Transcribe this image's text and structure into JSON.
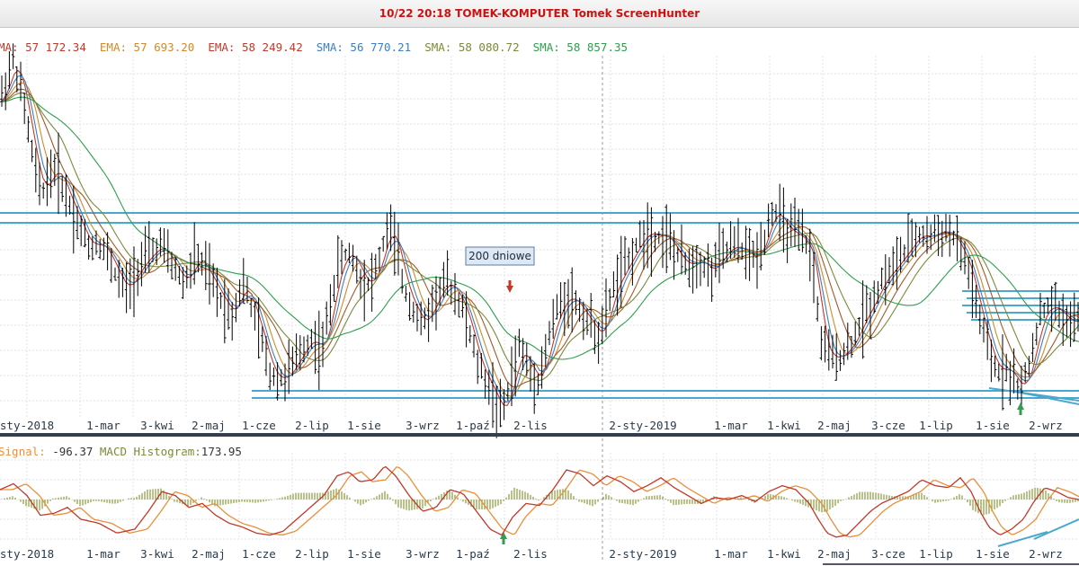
{
  "window": {
    "title": "10/22 20:18 TOMEK-KOMPUTER Tomek ScreenHunter"
  },
  "legend": {
    "ma_items": [
      {
        "label": "MA:",
        "value": "57 172.34",
        "color": "#c0392b"
      },
      {
        "label": "EMA:",
        "value": "57 693.20",
        "color": "#d38a2c"
      },
      {
        "label": "EMA:",
        "value": "58 249.42",
        "color": "#c0392b"
      },
      {
        "label": "SMA:",
        "value": "56 770.21",
        "color": "#3d7fbf"
      },
      {
        "label": "SMA:",
        "value": "58 080.72",
        "color": "#7a8a3a"
      },
      {
        "label": "SMA:",
        "value": "58 857.35",
        "color": "#2e9e4f"
      }
    ],
    "macd": {
      "signal_label": "Signal:",
      "signal_value": "-96.37",
      "hist_label": "MACD Histogram:",
      "hist_value": "173.95"
    }
  },
  "annotation": {
    "text": "200 dniowe"
  },
  "colors": {
    "price_bars": "#000000",
    "grid": "#e3e3e3",
    "horizontal_levels": "#4aa8cf",
    "separator": "#333f4f",
    "macd_line": "#c0392b",
    "signal_line": "#e8903a",
    "histogram": "#8a9a3a",
    "arrow_up": "#2e9e4f",
    "arrow_down": "#c0392b"
  },
  "chart_data": [
    {
      "type": "candlestick-ohlc",
      "x_labels": [
        "sty-2018",
        "1-mar",
        "3-kwi",
        "2-maj",
        "1-cze",
        "2-lip",
        "1-sie",
        "3-wrz",
        "1-paź",
        "2-lis",
        "2-sty-2019",
        "1-mar",
        "1-kwi",
        "2-maj",
        "3-cze",
        "1-lip",
        "1-sie",
        "2-wrz"
      ],
      "ylim": [
        0,
        100
      ],
      "close_path": [
        [
          0,
          88
        ],
        [
          8,
          95
        ],
        [
          15,
          100
        ],
        [
          22,
          93
        ],
        [
          30,
          82
        ],
        [
          38,
          70
        ],
        [
          45,
          62
        ],
        [
          52,
          66
        ],
        [
          62,
          70
        ],
        [
          70,
          64
        ],
        [
          80,
          58
        ],
        [
          90,
          52
        ],
        [
          100,
          47
        ],
        [
          108,
          49
        ],
        [
          118,
          46
        ],
        [
          128,
          40
        ],
        [
          140,
          35
        ],
        [
          152,
          41
        ],
        [
          165,
          45
        ],
        [
          178,
          48
        ],
        [
          192,
          42
        ],
        [
          205,
          37
        ],
        [
          218,
          45
        ],
        [
          230,
          40
        ],
        [
          245,
          33
        ],
        [
          258,
          28
        ],
        [
          270,
          38
        ],
        [
          280,
          30
        ],
        [
          290,
          22
        ],
        [
          300,
          12
        ],
        [
          315,
          10
        ],
        [
          330,
          16
        ],
        [
          345,
          22
        ],
        [
          358,
          18
        ],
        [
          368,
          33
        ],
        [
          378,
          44
        ],
        [
          390,
          46
        ],
        [
          402,
          38
        ],
        [
          412,
          37
        ],
        [
          422,
          44
        ],
        [
          432,
          54
        ],
        [
          440,
          47
        ],
        [
          450,
          35
        ],
        [
          460,
          30
        ],
        [
          470,
          25
        ],
        [
          480,
          31
        ],
        [
          495,
          38
        ],
        [
          508,
          34
        ],
        [
          520,
          26
        ],
        [
          530,
          15
        ],
        [
          540,
          10
        ],
        [
          550,
          5
        ],
        [
          558,
          0
        ],
        [
          566,
          8
        ],
        [
          578,
          20
        ],
        [
          590,
          12
        ],
        [
          600,
          10
        ],
        [
          610,
          22
        ],
        [
          620,
          30
        ],
        [
          632,
          34
        ],
        [
          645,
          30
        ],
        [
          655,
          26
        ],
        [
          668,
          22
        ],
        [
          680,
          35
        ],
        [
          695,
          42
        ],
        [
          708,
          48
        ],
        [
          720,
          52
        ],
        [
          730,
          50
        ],
        [
          740,
          51
        ],
        [
          752,
          45
        ],
        [
          765,
          42
        ],
        [
          778,
          44
        ],
        [
          790,
          40
        ],
        [
          802,
          45
        ],
        [
          815,
          48
        ],
        [
          828,
          46
        ],
        [
          840,
          44
        ],
        [
          850,
          50
        ],
        [
          858,
          58
        ],
        [
          866,
          56
        ],
        [
          875,
          52
        ],
        [
          885,
          51
        ],
        [
          898,
          48
        ],
        [
          905,
          40
        ],
        [
          912,
          22
        ],
        [
          920,
          17
        ],
        [
          928,
          16
        ],
        [
          940,
          18
        ],
        [
          950,
          22
        ],
        [
          960,
          28
        ],
        [
          970,
          32
        ],
        [
          980,
          38
        ],
        [
          992,
          41
        ],
        [
          1000,
          44
        ],
        [
          1010,
          47
        ],
        [
          1020,
          51
        ],
        [
          1032,
          50
        ],
        [
          1045,
          52
        ],
        [
          1058,
          51
        ],
        [
          1068,
          46
        ],
        [
          1078,
          40
        ],
        [
          1088,
          28
        ],
        [
          1098,
          19
        ],
        [
          1108,
          12
        ],
        [
          1118,
          14
        ],
        [
          1128,
          10
        ],
        [
          1136,
          7
        ],
        [
          1145,
          15
        ],
        [
          1155,
          27
        ],
        [
          1165,
          31
        ],
        [
          1175,
          30
        ],
        [
          1185,
          27
        ],
        [
          1195,
          26
        ],
        [
          1200,
          27
        ]
      ],
      "moving_averages": [
        {
          "name": "MA",
          "color": "#c0392b",
          "offset": 0,
          "lag": 4
        },
        {
          "name": "EMA",
          "color": "#d38a2c",
          "offset": 0,
          "lag": 9
        },
        {
          "name": "EMA",
          "color": "#a05a2a",
          "offset": 0,
          "lag": 14
        },
        {
          "name": "SMA",
          "color": "#3d7fbf",
          "offset": 0,
          "lag": 6
        },
        {
          "name": "SMA",
          "color": "#7a8a3a",
          "offset": 0,
          "lag": 20
        },
        {
          "name": "SMA",
          "color": "#2e9e4f",
          "offset": 0,
          "lag": 38
        }
      ]
    },
    {
      "type": "macd",
      "x_labels": [
        "sty-2018",
        "1-mar",
        "3-kwi",
        "2-maj",
        "1-cze",
        "2-lip",
        "1-sie",
        "3-wrz",
        "1-paź",
        "2-lis",
        "2-sty-2019",
        "1-mar",
        "1-kwi",
        "2-maj",
        "3-cze",
        "1-lip",
        "1-sie",
        "2-wrz"
      ],
      "ylim": [
        -1,
        1
      ],
      "macd_path": [
        [
          0,
          0.25
        ],
        [
          15,
          0.4
        ],
        [
          30,
          0.1
        ],
        [
          45,
          -0.4
        ],
        [
          60,
          -0.35
        ],
        [
          75,
          -0.2
        ],
        [
          90,
          -0.5
        ],
        [
          110,
          -0.6
        ],
        [
          130,
          -0.85
        ],
        [
          150,
          -0.75
        ],
        [
          165,
          -0.3
        ],
        [
          180,
          0.2
        ],
        [
          195,
          0.1
        ],
        [
          210,
          -0.2
        ],
        [
          225,
          -0.1
        ],
        [
          240,
          -0.4
        ],
        [
          255,
          -0.6
        ],
        [
          270,
          -0.7
        ],
        [
          285,
          -0.85
        ],
        [
          300,
          -0.9
        ],
        [
          315,
          -0.8
        ],
        [
          330,
          -0.5
        ],
        [
          345,
          -0.2
        ],
        [
          360,
          0.1
        ],
        [
          375,
          0.6
        ],
        [
          388,
          0.7
        ],
        [
          400,
          0.45
        ],
        [
          415,
          0.5
        ],
        [
          428,
          0.85
        ],
        [
          440,
          0.6
        ],
        [
          455,
          0.1
        ],
        [
          470,
          -0.3
        ],
        [
          485,
          -0.2
        ],
        [
          500,
          0.25
        ],
        [
          515,
          0.15
        ],
        [
          530,
          -0.3
        ],
        [
          545,
          -0.75
        ],
        [
          558,
          -0.9
        ],
        [
          570,
          -0.45
        ],
        [
          585,
          -0.1
        ],
        [
          600,
          -0.15
        ],
        [
          615,
          0.25
        ],
        [
          630,
          0.75
        ],
        [
          645,
          0.65
        ],
        [
          660,
          0.35
        ],
        [
          675,
          0.6
        ],
        [
          690,
          0.45
        ],
        [
          705,
          0.2
        ],
        [
          720,
          0.35
        ],
        [
          735,
          0.55
        ],
        [
          750,
          0.3
        ],
        [
          765,
          0.1
        ],
        [
          780,
          -0.1
        ],
        [
          795,
          0.05
        ],
        [
          810,
          0.0
        ],
        [
          825,
          0.1
        ],
        [
          840,
          -0.05
        ],
        [
          855,
          0.2
        ],
        [
          870,
          0.35
        ],
        [
          885,
          0.25
        ],
        [
          900,
          -0.1
        ],
        [
          910,
          -0.5
        ],
        [
          920,
          -0.85
        ],
        [
          930,
          -0.95
        ],
        [
          942,
          -0.9
        ],
        [
          955,
          -0.6
        ],
        [
          968,
          -0.3
        ],
        [
          980,
          -0.1
        ],
        [
          995,
          0.05
        ],
        [
          1010,
          0.2
        ],
        [
          1025,
          0.5
        ],
        [
          1040,
          0.35
        ],
        [
          1055,
          0.3
        ],
        [
          1068,
          0.55
        ],
        [
          1080,
          0.2
        ],
        [
          1090,
          -0.3
        ],
        [
          1100,
          -0.7
        ],
        [
          1112,
          -0.9
        ],
        [
          1125,
          -0.75
        ],
        [
          1138,
          -0.5
        ],
        [
          1150,
          -0.05
        ],
        [
          1162,
          0.3
        ],
        [
          1175,
          0.2
        ],
        [
          1188,
          0.05
        ],
        [
          1200,
          0.0
        ]
      ],
      "signal_lag": 14
    }
  ]
}
